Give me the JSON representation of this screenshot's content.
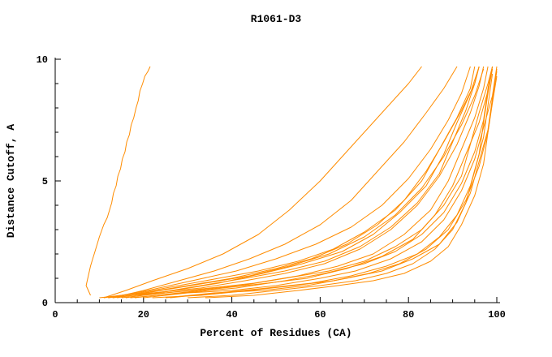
{
  "title": "R1061-D3",
  "chart_data": {
    "type": "line",
    "title": "R1061-D3",
    "xlabel": "Percent of Residues (CA)",
    "ylabel": "Distance Cutoff, A",
    "xlim": [
      0,
      100
    ],
    "ylim": [
      0,
      10
    ],
    "x_ticks": [
      0,
      20,
      40,
      60,
      80,
      100
    ],
    "x_minor_step": 5,
    "y_ticks": [
      0,
      5,
      10
    ],
    "y_minor_step": 1,
    "grid": false,
    "legend": "none",
    "line_color": "#ff8c00",
    "axis_color": "#000000",
    "background": "#ffffff",
    "series": [
      [
        [
          8,
          0.3
        ],
        [
          7,
          0.7
        ],
        [
          7.5,
          1.1
        ],
        [
          8,
          1.5
        ],
        [
          8.5,
          1.8
        ],
        [
          9,
          2.1
        ],
        [
          9.5,
          2.4
        ],
        [
          10,
          2.7
        ],
        [
          10.5,
          2.95
        ],
        [
          11,
          3.2
        ],
        [
          11.8,
          3.5
        ],
        [
          12.3,
          3.8
        ],
        [
          12.8,
          4.1
        ],
        [
          13.2,
          4.5
        ],
        [
          13.8,
          4.8
        ],
        [
          14.2,
          5.2
        ],
        [
          14.8,
          5.5
        ],
        [
          15.2,
          5.9
        ],
        [
          15.8,
          6.2
        ],
        [
          16.2,
          6.6
        ],
        [
          16.8,
          6.9
        ],
        [
          17.2,
          7.3
        ],
        [
          17.8,
          7.6
        ],
        [
          18.3,
          8.0
        ],
        [
          18.8,
          8.3
        ],
        [
          19.2,
          8.7
        ],
        [
          19.8,
          9.0
        ],
        [
          20.3,
          9.3
        ],
        [
          21,
          9.5
        ],
        [
          21.5,
          9.7
        ]
      ],
      [
        [
          11,
          0.2
        ],
        [
          16,
          0.5
        ],
        [
          22,
          0.9
        ],
        [
          30,
          1.4
        ],
        [
          38,
          2.0
        ],
        [
          46,
          2.8
        ],
        [
          53,
          3.8
        ],
        [
          60,
          5.0
        ],
        [
          66,
          6.2
        ],
        [
          71,
          7.2
        ],
        [
          76,
          8.2
        ],
        [
          80,
          9.0
        ],
        [
          83,
          9.7
        ]
      ],
      [
        [
          13,
          0.2
        ],
        [
          20,
          0.5
        ],
        [
          28,
          0.9
        ],
        [
          36,
          1.3
        ],
        [
          44,
          1.8
        ],
        [
          52,
          2.4
        ],
        [
          60,
          3.2
        ],
        [
          67,
          4.2
        ],
        [
          73,
          5.4
        ],
        [
          79,
          6.6
        ],
        [
          84,
          7.8
        ],
        [
          88,
          8.8
        ],
        [
          91,
          9.7
        ]
      ],
      [
        [
          10,
          0.2
        ],
        [
          20,
          0.4
        ],
        [
          30,
          0.7
        ],
        [
          40,
          1.0
        ],
        [
          50,
          1.4
        ],
        [
          58,
          1.8
        ],
        [
          66,
          2.4
        ],
        [
          73,
          3.2
        ],
        [
          79,
          4.2
        ],
        [
          84,
          5.4
        ],
        [
          88,
          6.6
        ],
        [
          92,
          7.9
        ],
        [
          95,
          9.0
        ],
        [
          96,
          9.7
        ]
      ],
      [
        [
          12,
          0.2
        ],
        [
          22,
          0.4
        ],
        [
          33,
          0.6
        ],
        [
          43,
          0.9
        ],
        [
          52,
          1.2
        ],
        [
          61,
          1.6
        ],
        [
          69,
          2.2
        ],
        [
          76,
          3.0
        ],
        [
          82,
          4.0
        ],
        [
          87,
          5.2
        ],
        [
          91,
          6.5
        ],
        [
          94,
          7.8
        ],
        [
          96,
          8.9
        ],
        [
          97,
          9.7
        ]
      ],
      [
        [
          15,
          0.2
        ],
        [
          25,
          0.4
        ],
        [
          35,
          0.6
        ],
        [
          45,
          0.8
        ],
        [
          55,
          1.1
        ],
        [
          64,
          1.5
        ],
        [
          72,
          2.0
        ],
        [
          79,
          2.8
        ],
        [
          85,
          3.8
        ],
        [
          89,
          5.0
        ],
        [
          92,
          6.3
        ],
        [
          95,
          7.6
        ],
        [
          97,
          8.8
        ],
        [
          98,
          9.7
        ]
      ],
      [
        [
          18,
          0.2
        ],
        [
          28,
          0.4
        ],
        [
          38,
          0.6
        ],
        [
          48,
          0.8
        ],
        [
          57,
          1.0
        ],
        [
          66,
          1.4
        ],
        [
          74,
          1.9
        ],
        [
          81,
          2.6
        ],
        [
          86,
          3.6
        ],
        [
          90,
          4.8
        ],
        [
          93,
          6.1
        ],
        [
          96,
          7.4
        ],
        [
          98,
          8.7
        ],
        [
          99,
          9.7
        ]
      ],
      [
        [
          20,
          0.2
        ],
        [
          30,
          0.4
        ],
        [
          40,
          0.5
        ],
        [
          50,
          0.7
        ],
        [
          60,
          1.0
        ],
        [
          68,
          1.3
        ],
        [
          76,
          1.8
        ],
        [
          83,
          2.5
        ],
        [
          88,
          3.4
        ],
        [
          92,
          4.6
        ],
        [
          95,
          5.9
        ],
        [
          97,
          7.2
        ],
        [
          99,
          8.5
        ],
        [
          100,
          9.7
        ]
      ],
      [
        [
          22,
          0.2
        ],
        [
          33,
          0.3
        ],
        [
          44,
          0.5
        ],
        [
          54,
          0.7
        ],
        [
          63,
          0.9
        ],
        [
          71,
          1.2
        ],
        [
          78,
          1.6
        ],
        [
          84,
          2.2
        ],
        [
          89,
          3.0
        ],
        [
          93,
          4.2
        ],
        [
          96,
          5.6
        ],
        [
          98,
          7.0
        ],
        [
          99,
          8.3
        ],
        [
          100,
          9.6
        ]
      ],
      [
        [
          25,
          0.2
        ],
        [
          36,
          0.4
        ],
        [
          47,
          0.5
        ],
        [
          57,
          0.7
        ],
        [
          66,
          1.0
        ],
        [
          74,
          1.3
        ],
        [
          81,
          1.8
        ],
        [
          87,
          2.4
        ],
        [
          91,
          3.3
        ],
        [
          94,
          4.5
        ],
        [
          96,
          5.8
        ],
        [
          98,
          7.1
        ],
        [
          99,
          8.4
        ],
        [
          100,
          9.5
        ]
      ],
      [
        [
          30,
          0.2
        ],
        [
          40,
          0.3
        ],
        [
          50,
          0.5
        ],
        [
          60,
          0.7
        ],
        [
          68,
          0.9
        ],
        [
          75,
          1.2
        ],
        [
          81,
          1.6
        ],
        [
          86,
          2.2
        ],
        [
          90,
          3.0
        ],
        [
          93,
          4.1
        ],
        [
          95,
          5.4
        ],
        [
          97,
          6.8
        ],
        [
          98,
          8.1
        ],
        [
          99,
          9.4
        ]
      ],
      [
        [
          14,
          0.2
        ],
        [
          24,
          0.5
        ],
        [
          34,
          0.8
        ],
        [
          44,
          1.1
        ],
        [
          53,
          1.5
        ],
        [
          62,
          2.0
        ],
        [
          70,
          2.7
        ],
        [
          77,
          3.6
        ],
        [
          83,
          4.7
        ],
        [
          88,
          6.0
        ],
        [
          92,
          7.3
        ],
        [
          95,
          8.5
        ],
        [
          97,
          9.6
        ]
      ],
      [
        [
          16,
          0.2
        ],
        [
          27,
          0.5
        ],
        [
          37,
          0.8
        ],
        [
          47,
          1.2
        ],
        [
          56,
          1.6
        ],
        [
          65,
          2.1
        ],
        [
          72,
          2.8
        ],
        [
          78,
          3.7
        ],
        [
          84,
          4.8
        ],
        [
          88,
          6.1
        ],
        [
          91,
          7.4
        ],
        [
          94,
          8.6
        ],
        [
          96,
          9.7
        ]
      ],
      [
        [
          11,
          0.2
        ],
        [
          19,
          0.4
        ],
        [
          28,
          0.7
        ],
        [
          37,
          1.0
        ],
        [
          46,
          1.3
        ],
        [
          55,
          1.7
        ],
        [
          63,
          2.2
        ],
        [
          70,
          2.9
        ],
        [
          77,
          3.8
        ],
        [
          83,
          5.0
        ],
        [
          87,
          6.3
        ],
        [
          91,
          7.6
        ],
        [
          94,
          8.8
        ],
        [
          95,
          9.7
        ]
      ],
      [
        [
          13,
          0.2
        ],
        [
          23,
          0.4
        ],
        [
          33,
          0.7
        ],
        [
          43,
          1.0
        ],
        [
          52,
          1.3
        ],
        [
          61,
          1.7
        ],
        [
          69,
          2.3
        ],
        [
          76,
          3.1
        ],
        [
          82,
          4.1
        ],
        [
          87,
          5.3
        ],
        [
          90,
          6.6
        ],
        [
          93,
          7.9
        ],
        [
          95,
          9.0
        ],
        [
          96,
          9.7
        ]
      ],
      [
        [
          34,
          0.2
        ],
        [
          45,
          0.3
        ],
        [
          55,
          0.5
        ],
        [
          64,
          0.7
        ],
        [
          72,
          0.9
        ],
        [
          79,
          1.2
        ],
        [
          85,
          1.7
        ],
        [
          89,
          2.3
        ],
        [
          92,
          3.2
        ],
        [
          95,
          4.4
        ],
        [
          97,
          5.7
        ],
        [
          98,
          7.0
        ],
        [
          99,
          8.2
        ],
        [
          100,
          9.3
        ]
      ],
      [
        [
          17,
          0.2
        ],
        [
          29,
          0.4
        ],
        [
          41,
          0.6
        ],
        [
          52,
          0.9
        ],
        [
          61,
          1.2
        ],
        [
          70,
          1.6
        ],
        [
          77,
          2.1
        ],
        [
          83,
          2.8
        ],
        [
          88,
          3.7
        ],
        [
          92,
          4.9
        ],
        [
          95,
          6.2
        ],
        [
          97,
          7.5
        ],
        [
          98,
          8.8
        ],
        [
          99,
          9.7
        ]
      ],
      [
        [
          19,
          0.3
        ],
        [
          31,
          0.5
        ],
        [
          42,
          0.7
        ],
        [
          52,
          1.0
        ],
        [
          62,
          1.3
        ],
        [
          70,
          1.7
        ],
        [
          77,
          2.3
        ],
        [
          83,
          3.0
        ],
        [
          88,
          4.0
        ],
        [
          92,
          5.2
        ],
        [
          94,
          6.5
        ],
        [
          96,
          7.8
        ],
        [
          98,
          9.0
        ],
        [
          99,
          9.7
        ]
      ],
      [
        [
          12,
          0.2
        ],
        [
          21,
          0.5
        ],
        [
          31,
          0.9
        ],
        [
          41,
          1.3
        ],
        [
          50,
          1.8
        ],
        [
          59,
          2.4
        ],
        [
          67,
          3.1
        ],
        [
          74,
          4.0
        ],
        [
          80,
          5.1
        ],
        [
          85,
          6.3
        ],
        [
          89,
          7.5
        ],
        [
          92,
          8.6
        ],
        [
          94,
          9.7
        ]
      ],
      [
        [
          26,
          0.2
        ],
        [
          37,
          0.4
        ],
        [
          48,
          0.6
        ],
        [
          58,
          0.8
        ],
        [
          67,
          1.1
        ],
        [
          75,
          1.5
        ],
        [
          82,
          2.0
        ],
        [
          87,
          2.7
        ],
        [
          91,
          3.6
        ],
        [
          94,
          4.8
        ],
        [
          96,
          6.1
        ],
        [
          97,
          7.4
        ],
        [
          98,
          8.6
        ],
        [
          99,
          9.6
        ]
      ]
    ]
  }
}
